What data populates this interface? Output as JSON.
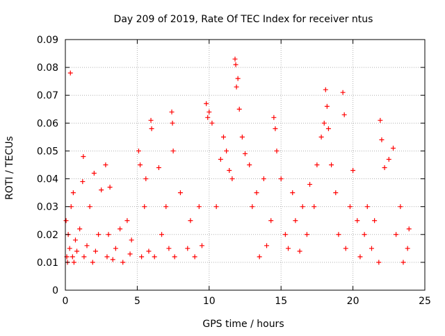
{
  "chart_data": {
    "type": "scatter",
    "title": "Day 209 of 2019, Rate Of TEC Index for receiver ntus",
    "xlabel": "GPS time / hours",
    "ylabel": "ROTI / TECUs",
    "xlim": [
      0,
      25
    ],
    "ylim": [
      0,
      0.09
    ],
    "xticks": [
      0,
      5,
      10,
      15,
      20,
      25
    ],
    "xtick_labels": [
      "0",
      "5",
      "10",
      "15",
      "20",
      "25"
    ],
    "yticks": [
      0,
      0.01,
      0.02,
      0.03,
      0.04,
      0.05,
      0.06,
      0.07,
      0.08,
      0.09
    ],
    "ytick_labels": [
      "0",
      "0.01",
      "0.02",
      "0.03",
      "0.04",
      "0.05",
      "0.06",
      "0.07",
      "0.08",
      "0.09"
    ],
    "grid": true,
    "legend": false,
    "marker": "+",
    "color": "#ff0000",
    "series": [
      {
        "x": [
          0.05,
          0.1,
          0.15,
          0.2,
          0.3,
          0.35,
          0.4,
          0.5,
          0.55,
          0.6,
          0.7,
          0.8,
          1.0,
          1.2,
          1.25,
          1.3,
          1.5,
          1.7,
          1.9,
          2.0,
          2.1,
          2.3,
          2.5,
          2.8,
          2.9,
          3.0,
          3.1,
          3.3,
          3.5,
          3.8,
          4.0,
          4.3,
          4.5,
          4.6,
          5.1,
          5.2,
          5.3,
          5.5,
          5.6,
          5.8,
          5.95,
          6.0,
          6.2,
          6.5,
          6.7,
          7.0,
          7.2,
          7.4,
          7.45,
          7.5,
          7.6,
          8.0,
          8.5,
          8.7,
          9.0,
          9.3,
          9.5,
          9.8,
          9.9,
          10.0,
          10.2,
          10.5,
          10.8,
          11.0,
          11.2,
          11.4,
          11.6,
          11.8,
          11.85,
          11.9,
          12.0,
          12.1,
          12.3,
          12.5,
          12.8,
          13.0,
          13.3,
          13.5,
          13.8,
          14.0,
          14.3,
          14.5,
          14.6,
          14.7,
          15.0,
          15.3,
          15.5,
          15.8,
          16.0,
          16.3,
          16.5,
          16.8,
          17.0,
          17.3,
          17.5,
          17.8,
          18.0,
          18.1,
          18.2,
          18.3,
          18.5,
          18.8,
          19.0,
          19.3,
          19.4,
          19.5,
          19.8,
          20.0,
          20.3,
          20.5,
          20.8,
          21.0,
          21.3,
          21.5,
          21.8,
          21.9,
          22.0,
          22.2,
          22.5,
          22.8,
          23.0,
          23.3,
          23.5,
          23.8,
          23.9
        ],
        "y": [
          0.025,
          0.012,
          0.01,
          0.02,
          0.015,
          0.078,
          0.03,
          0.012,
          0.035,
          0.01,
          0.018,
          0.014,
          0.022,
          0.039,
          0.048,
          0.012,
          0.016,
          0.03,
          0.01,
          0.042,
          0.014,
          0.02,
          0.036,
          0.045,
          0.012,
          0.02,
          0.037,
          0.011,
          0.015,
          0.022,
          0.01,
          0.025,
          0.013,
          0.018,
          0.05,
          0.045,
          0.012,
          0.03,
          0.04,
          0.014,
          0.061,
          0.058,
          0.012,
          0.044,
          0.02,
          0.03,
          0.015,
          0.064,
          0.06,
          0.05,
          0.012,
          0.035,
          0.015,
          0.025,
          0.012,
          0.03,
          0.016,
          0.067,
          0.062,
          0.064,
          0.06,
          0.03,
          0.047,
          0.055,
          0.05,
          0.043,
          0.04,
          0.083,
          0.081,
          0.073,
          0.076,
          0.065,
          0.055,
          0.049,
          0.045,
          0.03,
          0.035,
          0.012,
          0.04,
          0.016,
          0.025,
          0.062,
          0.058,
          0.05,
          0.04,
          0.02,
          0.015,
          0.035,
          0.025,
          0.014,
          0.03,
          0.02,
          0.038,
          0.03,
          0.045,
          0.055,
          0.06,
          0.072,
          0.066,
          0.058,
          0.045,
          0.035,
          0.02,
          0.071,
          0.063,
          0.015,
          0.03,
          0.043,
          0.025,
          0.012,
          0.02,
          0.03,
          0.015,
          0.025,
          0.01,
          0.061,
          0.054,
          0.044,
          0.047,
          0.051,
          0.02,
          0.03,
          0.01,
          0.015,
          0.022
        ]
      }
    ]
  }
}
